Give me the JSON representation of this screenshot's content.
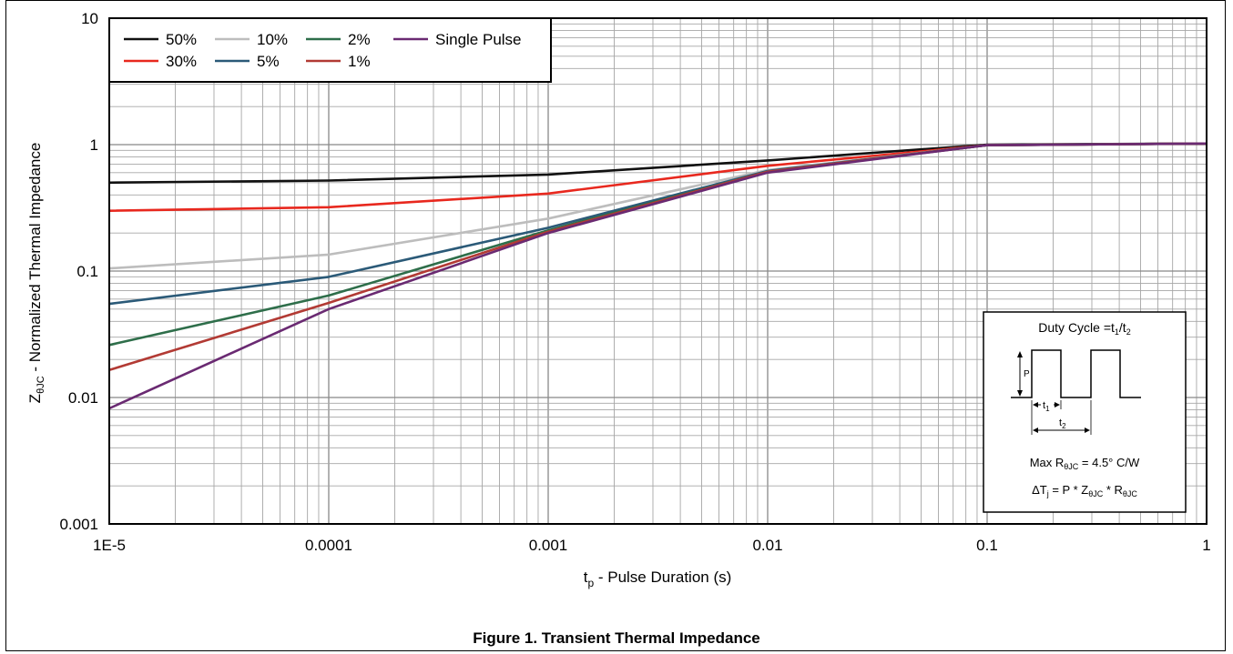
{
  "chart_data": {
    "type": "line",
    "xscale": "log",
    "yscale": "log",
    "xlim": [
      1e-05,
      1
    ],
    "ylim": [
      0.001,
      10
    ],
    "grid": true,
    "legend_position": "top-left",
    "xlabel": {
      "main": "t",
      "sub": "p",
      "rest": " - Pulse Duration (s)"
    },
    "ylabel": {
      "main": "Z",
      "sub": "θJC",
      "rest": " - Normalized Thermal Impedance"
    },
    "x_tick_labels": [
      "1E-5",
      "0.0001",
      "0.001",
      "0.01",
      "0.1",
      "1"
    ],
    "y_tick_labels": [
      "0.001",
      "0.01",
      "0.1",
      "1",
      "10"
    ],
    "series": [
      {
        "name": "50%",
        "color": "#111111",
        "x": [
          1e-05,
          0.0001,
          0.001,
          0.01,
          0.1,
          1
        ],
        "y": [
          0.5,
          0.52,
          0.58,
          0.75,
          1.0,
          1.02
        ]
      },
      {
        "name": "30%",
        "color": "#e8281e",
        "x": [
          1e-05,
          0.0001,
          0.001,
          0.01,
          0.1,
          1
        ],
        "y": [
          0.3,
          0.32,
          0.41,
          0.68,
          0.99,
          1.02
        ]
      },
      {
        "name": "10%",
        "color": "#bdbdbd",
        "x": [
          1e-05,
          0.0001,
          0.001,
          0.01,
          0.1,
          1
        ],
        "y": [
          0.105,
          0.135,
          0.26,
          0.63,
          0.99,
          1.02
        ]
      },
      {
        "name": "5%",
        "color": "#2b5a78",
        "x": [
          1e-05,
          0.0001,
          0.001,
          0.01,
          0.1,
          1
        ],
        "y": [
          0.055,
          0.09,
          0.22,
          0.62,
          0.99,
          1.02
        ]
      },
      {
        "name": "2%",
        "color": "#2e6e4a",
        "x": [
          1e-05,
          0.0001,
          0.001,
          0.01,
          0.1,
          1
        ],
        "y": [
          0.026,
          0.064,
          0.21,
          0.61,
          0.99,
          1.02
        ]
      },
      {
        "name": "1%",
        "color": "#b23a34",
        "x": [
          1e-05,
          0.0001,
          0.001,
          0.01,
          0.1,
          1
        ],
        "y": [
          0.0165,
          0.056,
          0.205,
          0.61,
          0.99,
          1.02
        ]
      },
      {
        "name": "Single Pulse",
        "color": "#6a2a72",
        "x": [
          1e-05,
          0.0001,
          0.001,
          0.01,
          0.1,
          1
        ],
        "y": [
          0.0082,
          0.05,
          0.2,
          0.6,
          0.99,
          1.02
        ]
      }
    ],
    "inset": {
      "title": {
        "main": "Duty Cycle =t",
        "sub1": "1",
        "mid": "/t",
        "sub2": "2"
      },
      "p_label": "P",
      "t1_label": {
        "main": "t",
        "sub": "1"
      },
      "t2_label": {
        "main": "t",
        "sub": "2"
      },
      "rth_line": {
        "a": "Max R",
        "sub": "θJC",
        "b": " = 4.5° C/W"
      },
      "dtj_line": {
        "a": "ΔT",
        "sub1": "j",
        "b": " = P * Z",
        "sub2": "θJC",
        "c": " * R",
        "sub3": "θJC"
      }
    }
  },
  "caption": "Figure 1. Transient Thermal Impedance"
}
